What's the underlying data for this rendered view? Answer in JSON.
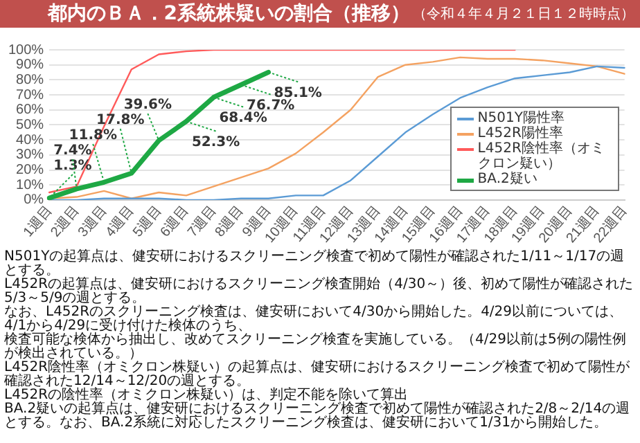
{
  "chart_data": {
    "type": "line",
    "title": "都内のＢＡ．2系統株疑いの割合（推移）",
    "subtitle": "（令和４年４月２１日１２時時点）",
    "categories": [
      "1週目",
      "2週目",
      "3週目",
      "4週目",
      "5週目",
      "6週目",
      "7週目",
      "8週目",
      "9週目",
      "10週目",
      "11週目",
      "12週目",
      "13週目",
      "14週目",
      "15週目",
      "16週目",
      "17週目",
      "18週目",
      "19週目",
      "20週目",
      "21週目",
      "22週目"
    ],
    "series": [
      {
        "name": "N501Y陽性率",
        "color": "#5b9bd5",
        "values": [
          0,
          0,
          1,
          1,
          1,
          0,
          0,
          1,
          1,
          3,
          3,
          13,
          29,
          45,
          57,
          68,
          75,
          81,
          83,
          85,
          89,
          88
        ]
      },
      {
        "name": "L452R陽性率",
        "color": "#f4a261",
        "values": [
          1,
          2,
          6,
          1,
          5,
          3,
          9,
          15,
          21,
          31,
          45,
          60,
          82,
          90,
          92,
          95,
          94,
          94,
          93,
          91,
          89,
          84
        ]
      },
      {
        "name": "L452R陰性率（オミクロン疑い）",
        "color": "#ff5a5a",
        "values": [
          5,
          9,
          49,
          87,
          97,
          99,
          100,
          100,
          100,
          100,
          100,
          100,
          100,
          100,
          100,
          100,
          100,
          100,
          null,
          null,
          null,
          null
        ]
      },
      {
        "name": "BA.2疑い",
        "color": "#1ea844",
        "values": [
          1.3,
          7.4,
          11.8,
          17.8,
          39.6,
          52.3,
          68.4,
          76.7,
          85.1,
          null,
          null,
          null,
          null,
          null,
          null,
          null,
          null,
          null,
          null,
          null,
          null,
          null
        ],
        "value_labels": [
          "1.3%",
          "7.4%",
          "11.8%",
          "17.8%",
          "39.6%",
          "52.3%",
          "68.4%",
          "76.7%",
          "85.1%",
          null,
          null,
          null,
          null,
          null,
          null,
          null,
          null,
          null,
          null,
          null,
          null,
          null
        ]
      }
    ],
    "ylim": [
      0,
      100
    ],
    "yticks": [
      {
        "value": 0,
        "label": "0%"
      },
      {
        "value": 10,
        "label": "10%"
      },
      {
        "value": 20,
        "label": "20%"
      },
      {
        "value": 30,
        "label": "30%"
      },
      {
        "value": 40,
        "label": "40%"
      },
      {
        "value": 50,
        "label": "50%"
      },
      {
        "value": 60,
        "label": "60%"
      },
      {
        "value": 70,
        "label": "70%"
      },
      {
        "value": 80,
        "label": "80%"
      },
      {
        "value": 90,
        "label": "90%"
      },
      {
        "value": 100,
        "label": "100%"
      }
    ],
    "grid": "y",
    "legend": "right",
    "marker": "none",
    "line_style": "solid",
    "annotations": [
      "N501Yの起算点は、健安研におけるスクリーニング検査で初めて陽性が確認された1/11～1/17の週とする。",
      "L452Rの起算点は、健安研におけるスクリーニング検査開始（4/30～）後、初めて陽性が確認された5/3～5/9の週とする。",
      "なお、L452Rのスクリーニング検査は、健安研において4/30から開始した。4/29以前については、4/1から4/29に受け付けた検体のうち、",
      "検査可能な検体から抽出し、改めてスクリーニング検査を実施している。（4/29以前は5例の陽性例が検出されている。）",
      "L452R陰性率（オミクロン株疑い）の起算点は、健安研におけるスクリーニング検査で初めて陽性が確認された12/14～12/20の週とする。",
      "L452Rの陰性率（オミクロン株疑い）は、判定不能を除いて算出",
      "BA.2疑いの起算点は、健安研におけるスクリーニング検査で初めて陽性が確認された2/8～2/14の週とする。なお、BA.2系統に対応したスクリーニング検査は、健安研において1/31から開始した。"
    ]
  }
}
